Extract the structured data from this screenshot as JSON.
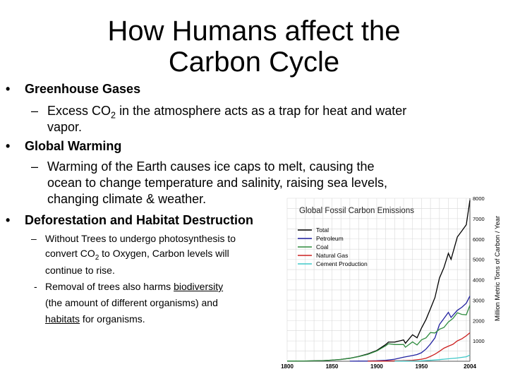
{
  "slide": {
    "title_line1": "How Humans affect the",
    "title_line2": "Carbon Cycle",
    "bullets": [
      {
        "marker": "•",
        "text": "Greenhouse Gases"
      },
      {
        "marker": "•",
        "text": "Global Warming"
      },
      {
        "marker": "•",
        "text": "Deforestation and Habitat Destruction"
      }
    ],
    "greenhouse_sub": {
      "marker": "–",
      "pre": "Excess CO",
      "sub": "2",
      "post": "in the atmosphere acts as a trap for heat and water",
      "line2": "vapor."
    },
    "warming_sub": {
      "marker": "–",
      "line1": "Warming of the Earth causes ice caps to melt, causing the",
      "line2": "ocean to change temperature and salinity, raising sea levels,",
      "line3": "changing climate & weather."
    },
    "deforest_sub1": {
      "marker": "–",
      "line1": "Without Trees to undergo photosynthesis to",
      "line2_pre": "convert CO",
      "line2_sub": "2",
      "line2_post": " to Oxygen, Carbon levels will",
      "line3": "continue to rise."
    },
    "deforest_sub2": {
      "marker": "-",
      "line1_pre": "Removal of trees also harms ",
      "line1_link": "biodiversity",
      "line2": "(the amount of different organisms) and",
      "line3_link": "habitats",
      "line3_post": " for organisms."
    }
  },
  "chart_data": {
    "type": "line",
    "title": "Global Fossil Carbon Emissions",
    "ylabel": "Million Metric Tons of Carbon / Year",
    "xlim": [
      1800,
      2004
    ],
    "ylim": [
      0,
      8000
    ],
    "xticks": [
      "1800",
      "1850",
      "1900",
      "1950",
      "2004"
    ],
    "yticks": [
      "1000",
      "2000",
      "3000",
      "4000",
      "5000",
      "6000",
      "7000",
      "8000"
    ],
    "legend_position": "top-left",
    "series": [
      {
        "name": "Total",
        "color": "#000000",
        "x": [
          1800,
          1820,
          1840,
          1850,
          1860,
          1870,
          1880,
          1890,
          1900,
          1910,
          1913,
          1920,
          1930,
          1932,
          1940,
          1945,
          1950,
          1955,
          1960,
          1965,
          1970,
          1975,
          1980,
          1983,
          1990,
          1995,
          2000,
          2004
        ],
        "y": [
          10,
          15,
          30,
          55,
          90,
          150,
          240,
          360,
          530,
          820,
          940,
          940,
          1050,
          880,
          1300,
          1150,
          1630,
          2050,
          2580,
          3130,
          4080,
          4600,
          5300,
          5000,
          6100,
          6400,
          6700,
          7900
        ]
      },
      {
        "name": "Petroleum",
        "color": "#2020a0",
        "x": [
          1870,
          1890,
          1900,
          1910,
          1920,
          1930,
          1940,
          1945,
          1950,
          1955,
          1960,
          1965,
          1970,
          1975,
          1980,
          1983,
          1990,
          1995,
          2000,
          2004
        ],
        "y": [
          2,
          10,
          25,
          50,
          100,
          200,
          280,
          330,
          420,
          600,
          850,
          1150,
          1800,
          2100,
          2400,
          2150,
          2500,
          2650,
          2850,
          3200
        ]
      },
      {
        "name": "Coal",
        "color": "#2e8b3e",
        "x": [
          1800,
          1820,
          1840,
          1850,
          1860,
          1870,
          1880,
          1890,
          1900,
          1910,
          1913,
          1920,
          1930,
          1932,
          1940,
          1945,
          1950,
          1955,
          1960,
          1965,
          1970,
          1975,
          1980,
          1985,
          1990,
          1995,
          2000,
          2004
        ],
        "y": [
          10,
          15,
          30,
          54,
          88,
          145,
          230,
          340,
          505,
          760,
          860,
          820,
          820,
          690,
          950,
          800,
          1050,
          1150,
          1410,
          1390,
          1570,
          1660,
          1930,
          2100,
          2380,
          2300,
          2280,
          2750
        ]
      },
      {
        "name": "Natural Gas",
        "color": "#cc2020",
        "x": [
          1890,
          1910,
          1930,
          1940,
          1950,
          1955,
          1960,
          1965,
          1970,
          1975,
          1980,
          1985,
          1990,
          1995,
          2000,
          2004
        ],
        "y": [
          2,
          10,
          30,
          50,
          100,
          150,
          240,
          350,
          490,
          640,
          740,
          830,
          1000,
          1100,
          1250,
          1400
        ]
      },
      {
        "name": "Cement Production",
        "color": "#3ec8c8",
        "x": [
          1920,
          1930,
          1940,
          1950,
          1960,
          1970,
          1980,
          1990,
          2000,
          2004
        ],
        "y": [
          5,
          10,
          15,
          20,
          50,
          80,
          120,
          160,
          220,
          300
        ]
      }
    ]
  }
}
